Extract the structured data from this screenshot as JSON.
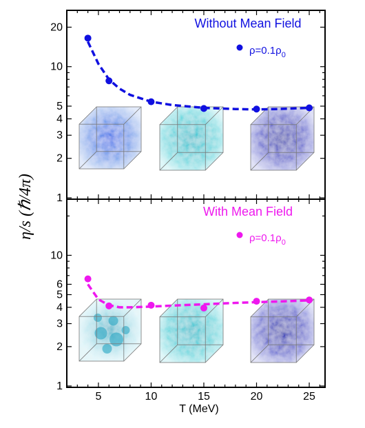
{
  "chart_data": [
    {
      "type": "scatter",
      "title": "Without Mean Field",
      "color": "#1010e0",
      "xlabel": "T (MeV)",
      "ylabel": "η/s (ℏ/4π)",
      "yscale": "log",
      "xlim": [
        2,
        26.5
      ],
      "ylim": [
        1,
        25
      ],
      "yticks": [
        1,
        2,
        3,
        4,
        5,
        10,
        20
      ],
      "series": [
        {
          "name": "ρ=0.1ρ₀",
          "x": [
            4,
            6,
            10,
            15,
            20,
            25
          ],
          "y": [
            16.5,
            7.8,
            5.4,
            4.8,
            4.75,
            4.85
          ]
        }
      ],
      "fit_curve": {
        "style": "dashed",
        "x": [
          4,
          5,
          6,
          7,
          8,
          10,
          12,
          15,
          18,
          20,
          22,
          25
        ],
        "y": [
          15.5,
          10.5,
          8.0,
          6.8,
          6.1,
          5.4,
          5.1,
          4.85,
          4.75,
          4.72,
          4.75,
          4.85
        ]
      },
      "legend_label_main": "ρ=0.1ρ",
      "legend_label_sub": "0",
      "insets": [
        "blue-cloud-cube",
        "cyan-cloud-cube",
        "dark-blue-cloud-cube"
      ]
    },
    {
      "type": "scatter",
      "title": "With Mean Field",
      "color": "#ee18ee",
      "xlabel": "T (MeV)",
      "ylabel": "η/s (ℏ/4π)",
      "yscale": "log",
      "xlim": [
        2,
        26.5
      ],
      "ylim": [
        1,
        25
      ],
      "yticks": [
        1,
        2,
        3,
        4,
        5,
        6,
        10
      ],
      "series": [
        {
          "name": "ρ=0.1ρ₀",
          "x": [
            4,
            6,
            10,
            15,
            20,
            25
          ],
          "y": [
            6.6,
            4.1,
            4.15,
            3.95,
            4.45,
            4.55
          ]
        }
      ],
      "fit_curve": {
        "style": "dashed",
        "x": [
          4,
          5,
          6,
          7,
          8,
          10,
          12,
          15,
          18,
          20,
          22,
          25
        ],
        "y": [
          6.0,
          4.6,
          4.15,
          4.0,
          4.0,
          4.05,
          4.12,
          4.22,
          4.32,
          4.38,
          4.43,
          4.52
        ]
      },
      "legend_label_main": "ρ=0.1ρ",
      "legend_label_sub": "0",
      "insets": [
        "clustered-cyan-cube",
        "cyan-cloud-cube",
        "dark-blue-cloud-cube"
      ]
    }
  ],
  "xticks": [
    5,
    10,
    15,
    20,
    25
  ],
  "xaxis_label": "T (MeV)",
  "yaxis_label": "η/s (ℏ/4π)"
}
